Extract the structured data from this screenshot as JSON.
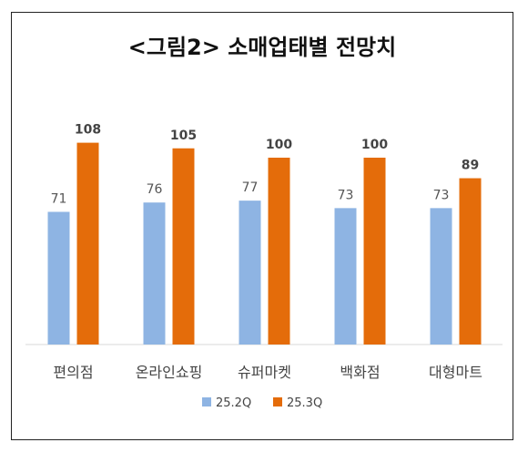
{
  "chart_data": {
    "type": "bar",
    "title": "<그림2> 소매업태별 전망치",
    "categories": [
      "편의점",
      "온라인쇼핑",
      "슈퍼마켓",
      "백화점",
      "대형마트"
    ],
    "series": [
      {
        "name": "25.2Q",
        "values": [
          71,
          76,
          77,
          73,
          73
        ],
        "color": "#8EB4E3"
      },
      {
        "name": "25.3Q",
        "values": [
          108,
          105,
          100,
          100,
          89
        ],
        "color": "#E46C0A"
      }
    ],
    "ylim": [
      0,
      120
    ],
    "grid": false,
    "legend": "bottom",
    "value_label_colors": {
      "25.2Q": "#555555",
      "25.3Q": "#444444"
    }
  }
}
